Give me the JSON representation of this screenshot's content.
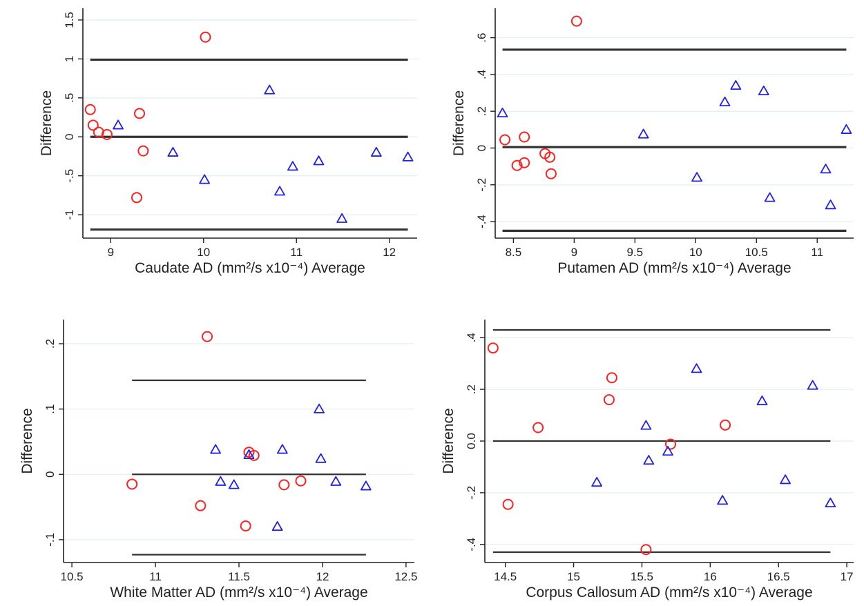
{
  "style": {
    "circle_color": "#ff2020",
    "triangle_color": "#2020e8",
    "line_color": "#333333",
    "grid_color": "#e4efee",
    "circle_marker": "circle-marker",
    "triangle_marker": "triangle-marker"
  },
  "chart_data": [
    {
      "type": "scatter",
      "xlabel": "Caudate AD (mm²/s x10⁻⁴) Average",
      "ylabel": "Difference",
      "xlim": [
        8.7,
        12.3
      ],
      "ylim": [
        -1.3,
        1.65
      ],
      "x_ticks": [
        9,
        10,
        11,
        12
      ],
      "x_tick_labels": [
        "9",
        "10",
        "11",
        "12"
      ],
      "y_ticks": [
        1.5,
        1,
        0.5,
        0,
        -0.5,
        -1
      ],
      "y_tick_labels": [
        "1.5",
        "1",
        ".5",
        "0",
        "-.5",
        "-1"
      ],
      "grid": true,
      "reference_lines": [
        {
          "y": 0.99,
          "x_range": [
            8.78,
            12.2
          ]
        },
        {
          "y": 0.0,
          "x_range": [
            8.78,
            12.2
          ]
        },
        {
          "y": -1.19,
          "x_range": [
            8.78,
            12.2
          ]
        }
      ],
      "series": [
        {
          "marker": "circle",
          "points": [
            [
              8.78,
              0.35
            ],
            [
              8.81,
              0.15
            ],
            [
              8.87,
              0.06
            ],
            [
              8.96,
              0.03
            ],
            [
              9.31,
              0.3
            ],
            [
              9.35,
              -0.18
            ],
            [
              9.28,
              -0.78
            ],
            [
              10.02,
              1.28
            ]
          ]
        },
        {
          "marker": "triangle",
          "points": [
            [
              9.08,
              0.15
            ],
            [
              9.67,
              -0.2
            ],
            [
              10.01,
              -0.55
            ],
            [
              10.71,
              0.6
            ],
            [
              10.82,
              -0.7
            ],
            [
              10.96,
              -0.38
            ],
            [
              11.24,
              -0.31
            ],
            [
              11.49,
              -1.05
            ],
            [
              11.86,
              -0.2
            ],
            [
              12.2,
              -0.26
            ]
          ]
        }
      ]
    },
    {
      "type": "scatter",
      "xlabel": "Putamen AD (mm²/s x10⁻⁴) Average",
      "ylabel": "Difference",
      "xlim": [
        8.35,
        11.3
      ],
      "ylim": [
        -0.49,
        0.76
      ],
      "x_ticks": [
        8.5,
        9,
        9.5,
        10,
        10.5,
        11
      ],
      "x_tick_labels": [
        "8.5",
        "9",
        "9.5",
        "10",
        "10.5",
        "11"
      ],
      "y_ticks": [
        0.6,
        0.4,
        0.2,
        0,
        -0.2,
        -0.4
      ],
      "y_tick_labels": [
        ".6",
        ".4",
        ".2",
        "0",
        "-.2",
        "-.4"
      ],
      "grid": true,
      "reference_lines": [
        {
          "y": 0.535,
          "x_range": [
            8.41,
            11.24
          ]
        },
        {
          "y": 0.005,
          "x_range": [
            8.41,
            11.24
          ]
        },
        {
          "y": -0.45,
          "x_range": [
            8.41,
            11.24
          ]
        }
      ],
      "series": [
        {
          "marker": "circle",
          "points": [
            [
              8.43,
              0.045
            ],
            [
              8.53,
              -0.095
            ],
            [
              8.59,
              0.06
            ],
            [
              8.59,
              -0.08
            ],
            [
              8.76,
              -0.03
            ],
            [
              8.8,
              -0.05
            ],
            [
              8.81,
              -0.14
            ],
            [
              9.02,
              0.69
            ]
          ]
        },
        {
          "marker": "triangle",
          "points": [
            [
              8.41,
              0.19
            ],
            [
              9.57,
              0.075
            ],
            [
              10.01,
              -0.16
            ],
            [
              10.24,
              0.25
            ],
            [
              10.33,
              0.34
            ],
            [
              10.56,
              0.31
            ],
            [
              10.61,
              -0.27
            ],
            [
              11.07,
              -0.115
            ],
            [
              11.11,
              -0.31
            ],
            [
              11.24,
              0.1
            ]
          ]
        }
      ]
    },
    {
      "type": "scatter",
      "xlabel": "White Matter AD (mm²/s x10⁻⁴) Average",
      "ylabel": "Difference",
      "xlim": [
        10.45,
        12.55
      ],
      "ylim": [
        -0.135,
        0.237
      ],
      "x_ticks": [
        10.5,
        11,
        11.5,
        12,
        12.5
      ],
      "x_tick_labels": [
        "10.5",
        "11",
        "11.5",
        "12",
        "12.5"
      ],
      "y_ticks": [
        0.2,
        0.1,
        0,
        -0.1
      ],
      "y_tick_labels": [
        ".2",
        ".1",
        "0",
        "-.1"
      ],
      "grid": true,
      "reference_lines": [
        {
          "y": 0.144,
          "x_range": [
            10.86,
            12.26
          ]
        },
        {
          "y": 0.0,
          "x_range": [
            10.86,
            12.26
          ]
        },
        {
          "y": -0.123,
          "x_range": [
            10.86,
            12.26
          ]
        }
      ],
      "series": [
        {
          "marker": "circle",
          "points": [
            [
              10.86,
              -0.015
            ],
            [
              11.27,
              -0.048
            ],
            [
              11.31,
              0.211
            ],
            [
              11.54,
              -0.079
            ],
            [
              11.56,
              0.034
            ],
            [
              11.59,
              0.029
            ],
            [
              11.77,
              -0.016
            ],
            [
              11.87,
              -0.01
            ]
          ]
        },
        {
          "marker": "triangle",
          "points": [
            [
              11.36,
              0.038
            ],
            [
              11.39,
              -0.011
            ],
            [
              11.47,
              -0.016
            ],
            [
              11.56,
              0.03
            ],
            [
              11.73,
              -0.08
            ],
            [
              11.76,
              0.038
            ],
            [
              11.98,
              0.1
            ],
            [
              11.99,
              0.024
            ],
            [
              12.08,
              -0.011
            ],
            [
              12.26,
              -0.018
            ]
          ]
        }
      ]
    },
    {
      "type": "scatter",
      "xlabel": "Corpus Callosum AD (mm²/s x10⁻⁴) Average",
      "ylabel": "Difference",
      "xlim": [
        14.35,
        17.05
      ],
      "ylim": [
        -0.47,
        0.47
      ],
      "x_ticks": [
        14.5,
        15,
        15.5,
        16,
        16.5,
        17
      ],
      "x_tick_labels": [
        "14.5",
        "15",
        "15.5",
        "16",
        "16.5",
        "17"
      ],
      "y_ticks": [
        0.4,
        0.2,
        0,
        -0.2,
        -0.4
      ],
      "y_tick_labels": [
        ".4",
        ".2",
        "0.0",
        "-.2",
        "-.4"
      ],
      "grid": true,
      "reference_lines": [
        {
          "y": 0.43,
          "x_range": [
            14.41,
            16.88
          ]
        },
        {
          "y": 0.0,
          "x_range": [
            14.41,
            16.88
          ]
        },
        {
          "y": -0.43,
          "x_range": [
            14.41,
            16.88
          ]
        }
      ],
      "series": [
        {
          "marker": "circle",
          "points": [
            [
              14.41,
              0.36
            ],
            [
              14.52,
              -0.245
            ],
            [
              14.74,
              0.052
            ],
            [
              15.26,
              0.16
            ],
            [
              15.28,
              0.245
            ],
            [
              15.53,
              -0.42
            ],
            [
              15.71,
              -0.012
            ],
            [
              16.11,
              0.062
            ]
          ]
        },
        {
          "marker": "triangle",
          "points": [
            [
              15.17,
              -0.16
            ],
            [
              15.53,
              0.06
            ],
            [
              15.55,
              -0.075
            ],
            [
              15.69,
              -0.04
            ],
            [
              15.9,
              0.28
            ],
            [
              16.09,
              -0.23
            ],
            [
              16.38,
              0.155
            ],
            [
              16.55,
              -0.15
            ],
            [
              16.75,
              0.215
            ],
            [
              16.88,
              -0.24
            ]
          ]
        }
      ]
    }
  ]
}
